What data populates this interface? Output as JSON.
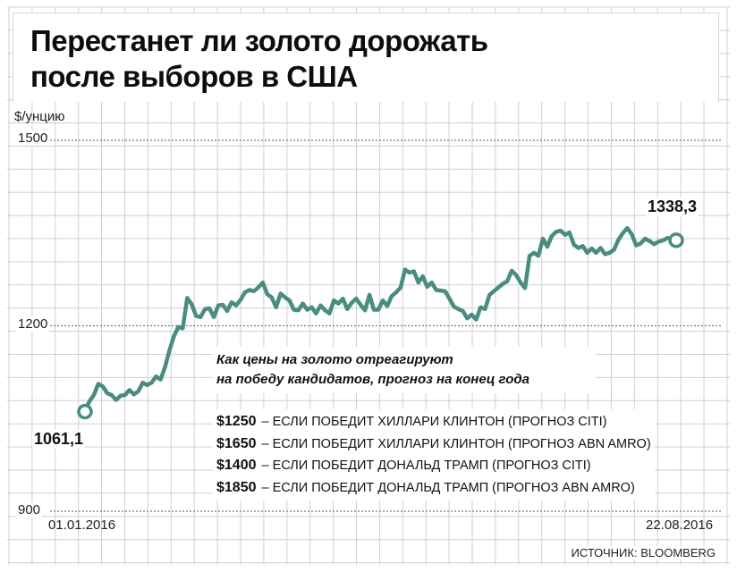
{
  "title": {
    "line1": "Перестанет ли золото дорожать",
    "line2": "после выборов в США"
  },
  "chart_data": {
    "type": "line",
    "title": "Перестанет ли золото дорожать после выборов в США",
    "ylabel": "$/унцию",
    "xlabel": "",
    "ylim": [
      900,
      1500
    ],
    "yticks": [
      "1500",
      "1200",
      "900"
    ],
    "xticks": [
      "01.01.2016",
      "22.08.2016"
    ],
    "grid": true,
    "line_color": "#4a8c80",
    "start": {
      "date": "01.01.2016",
      "value": 1061.1,
      "label": "1061,1"
    },
    "end": {
      "date": "22.08.2016",
      "value": 1338.3,
      "label": "1338,3"
    },
    "series": [
      {
        "values": [
          1061.1,
          1078,
          1088,
          1106,
          1102,
          1091,
          1088,
          1080,
          1087,
          1088,
          1096,
          1089,
          1094,
          1108,
          1104,
          1108,
          1118,
          1113,
          1133,
          1160,
          1183,
          1198,
          1196,
          1245,
          1235,
          1216,
          1214,
          1227,
          1228,
          1214,
          1233,
          1234,
          1224,
          1238,
          1233,
          1242,
          1254,
          1258,
          1256,
          1262,
          1270,
          1251,
          1246,
          1230,
          1252,
          1246,
          1241,
          1226,
          1225,
          1236,
          1226,
          1230,
          1220,
          1233,
          1225,
          1220,
          1241,
          1236,
          1244,
          1227,
          1237,
          1244,
          1234,
          1225,
          1250,
          1226,
          1226,
          1241,
          1232,
          1248,
          1254,
          1262,
          1291,
          1286,
          1288,
          1270,
          1280,
          1263,
          1270,
          1258,
          1257,
          1256,
          1244,
          1231,
          1227,
          1224,
          1212,
          1218,
          1210,
          1230,
          1227,
          1250,
          1256,
          1262,
          1268,
          1272,
          1289,
          1282,
          1270,
          1261,
          1313,
          1318,
          1313,
          1341,
          1328,
          1345,
          1352,
          1354,
          1347,
          1351,
          1331,
          1326,
          1329,
          1318,
          1325,
          1318,
          1326,
          1316,
          1318,
          1323,
          1339,
          1350,
          1358,
          1348,
          1330,
          1333,
          1341,
          1337,
          1332,
          1336,
          1338,
          1342,
          1341,
          1338.3
        ]
      }
    ]
  },
  "annotations": {
    "start_label": "1061,1",
    "end_label": "1338,3"
  },
  "note": {
    "line1": "Как цены на золото отреагируют",
    "line2": "на победу кандидатов, прогноз на конец года"
  },
  "forecasts": [
    {
      "price": "$1250",
      "text": "– ЕСЛИ ПОБЕДИТ ХИЛЛАРИ КЛИНТОН (ПРОГНОЗ CITI)"
    },
    {
      "price": "$1650",
      "text": "– ЕСЛИ ПОБЕДИТ ХИЛЛАРИ КЛИНТОН (ПРОГНОЗ ABN AMRO)"
    },
    {
      "price": "$1400",
      "text": "– ЕСЛИ ПОБЕДИТ ДОНАЛЬД ТРАМП (ПРОГНОЗ CITI)"
    },
    {
      "price": "$1850",
      "text": "– ЕСЛИ ПОБЕДИТ ДОНАЛЬД ТРАМП (ПРОГНОЗ ABN AMRO)"
    }
  ],
  "source": "ИСТОЧНИК: BLOOMBERG"
}
